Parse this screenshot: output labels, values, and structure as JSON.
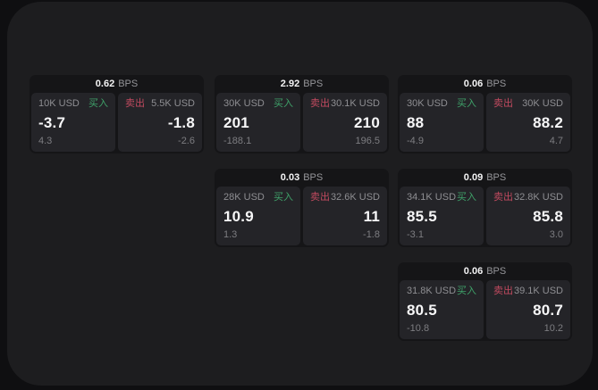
{
  "page": {
    "bps_unit": "BPS",
    "buy_label": "买入",
    "sell_label": "卖出"
  },
  "colors": {
    "outer_background": "#0f0f11",
    "panel_background": "#1d1d1f",
    "card_background": "#151517",
    "tile_background": "#242428",
    "buy_green": "#3fa169",
    "sell_red": "#c14a5f",
    "value_white": "#f7f7f8",
    "label_gray": "#8e8e92",
    "sub_gray": "#7d7d81"
  },
  "cards": [
    {
      "bps": "0.62",
      "buy": {
        "amount": "10K USD",
        "value": "-3.7",
        "change": "4.3"
      },
      "sell": {
        "amount": "5.5K USD",
        "value": "-1.8",
        "change": "-2.6"
      }
    },
    {
      "bps": "2.92",
      "buy": {
        "amount": "30K USD",
        "value": "201",
        "change": "-188.1"
      },
      "sell": {
        "amount": "30.1K USD",
        "value": "210",
        "change": "196.5"
      }
    },
    {
      "bps": "0.06",
      "buy": {
        "amount": "30K USD",
        "value": "88",
        "change": "-4.9"
      },
      "sell": {
        "amount": "30K USD",
        "value": "88.2",
        "change": "4.7"
      }
    },
    {
      "bps": "0.03",
      "buy": {
        "amount": "28K USD",
        "value": "10.9",
        "change": "1.3"
      },
      "sell": {
        "amount": "32.6K USD",
        "value": "11",
        "change": "-1.8"
      }
    },
    {
      "bps": "0.09",
      "buy": {
        "amount": "34.1K USD",
        "value": "85.5",
        "change": "-3.1"
      },
      "sell": {
        "amount": "32.8K USD",
        "value": "85.8",
        "change": "3.0"
      }
    },
    {
      "bps": "0.06",
      "buy": {
        "amount": "31.8K USD",
        "value": "80.5",
        "change": "-10.8"
      },
      "sell": {
        "amount": "39.1K USD",
        "value": "80.7",
        "change": "10.2"
      }
    }
  ]
}
